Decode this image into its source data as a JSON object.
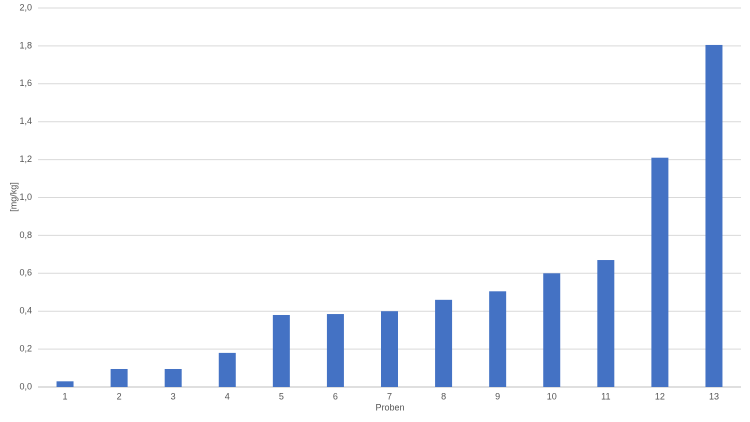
{
  "chart_data": {
    "type": "bar",
    "categories": [
      "1",
      "2",
      "3",
      "4",
      "5",
      "6",
      "7",
      "8",
      "9",
      "10",
      "11",
      "12",
      "13"
    ],
    "values": [
      0.03,
      0.095,
      0.095,
      0.18,
      0.38,
      0.385,
      0.4,
      0.46,
      0.505,
      0.6,
      0.67,
      1.21,
      1.805
    ],
    "color": "#4472c4",
    "ylim": [
      0,
      2
    ],
    "yticks": [
      {
        "value": 0,
        "label": "0,0"
      },
      {
        "value": 0.2,
        "label": "0,2"
      },
      {
        "value": 0.4,
        "label": "0,4"
      },
      {
        "value": 0.6,
        "label": "0,6"
      },
      {
        "value": 0.8,
        "label": "0,8"
      },
      {
        "value": 1,
        "label": "1,0"
      },
      {
        "value": 1.2,
        "label": "1,2"
      },
      {
        "value": 1.4,
        "label": "1,4"
      },
      {
        "value": 1.6,
        "label": "1,6"
      },
      {
        "value": 1.8,
        "label": "1,8"
      },
      {
        "value": 2,
        "label": "2,0"
      }
    ],
    "grid": true,
    "x_label": "Proben",
    "y_label": "[mg/kg]"
  }
}
